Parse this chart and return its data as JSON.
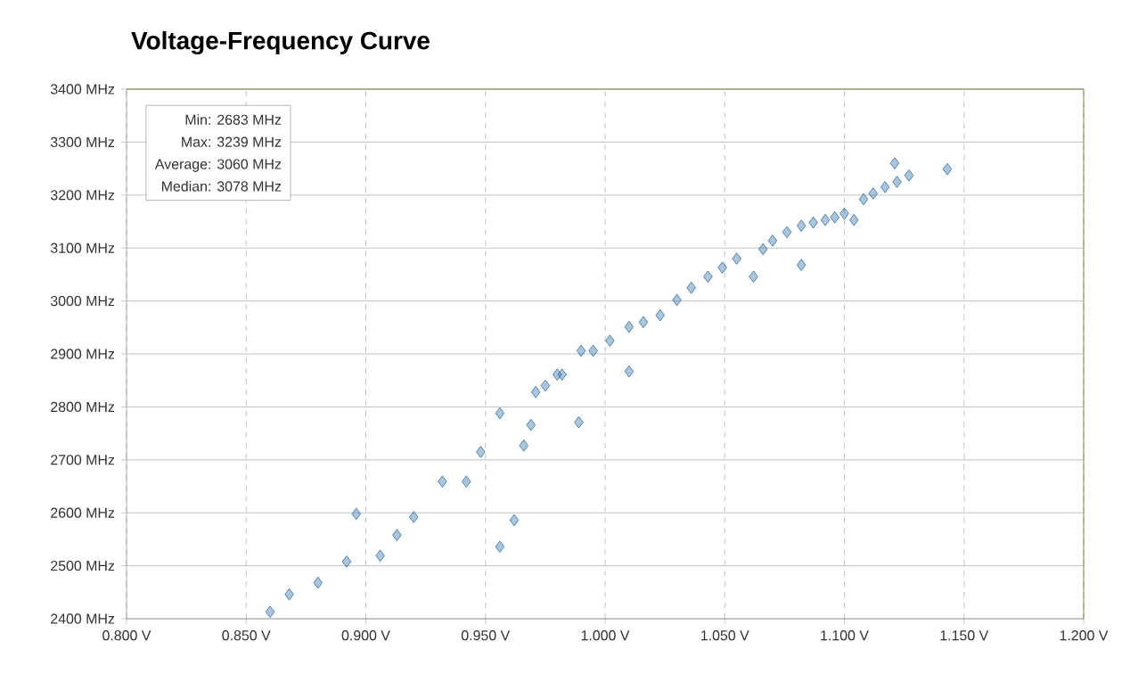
{
  "chart_data": {
    "type": "scatter",
    "title": "Voltage-Frequency Curve",
    "annotations": [
      "Min: 2683 MHz",
      "Max: 3239 MHz",
      "Average:  3060 MHz",
      "Median: 3078 MHz"
    ],
    "x": [
      0.86,
      0.868,
      0.88,
      0.892,
      0.896,
      0.906,
      0.913,
      0.92,
      0.932,
      0.942,
      0.948,
      0.956,
      0.962,
      0.956,
      0.966,
      0.969,
      0.971,
      0.975,
      0.98,
      0.982,
      0.989,
      0.99,
      0.995,
      1.002,
      1.01,
      1.01,
      1.016,
      1.023,
      1.03,
      1.036,
      1.043,
      1.049,
      1.055,
      1.062,
      1.066,
      1.07,
      1.076,
      1.082,
      1.082,
      1.087,
      1.092,
      1.096,
      1.1,
      1.104,
      1.108,
      1.112,
      1.117,
      1.121,
      1.122,
      1.127,
      1.143
    ],
    "values": [
      2413,
      2446,
      2468,
      2508,
      2598,
      2519,
      2558,
      2592,
      2659,
      2659,
      2715,
      2536,
      2586,
      2788,
      2727,
      2766,
      2828,
      2840,
      2861,
      2861,
      2771,
      2906,
      2906,
      2925,
      2951,
      2867,
      2960,
      2973,
      3002,
      3025,
      3046,
      3063,
      3080,
      3046,
      3098,
      3114,
      3130,
      3142,
      3068,
      3148,
      3153,
      3158,
      3165,
      3153,
      3192,
      3203,
      3215,
      3260,
      3225,
      3237,
      3249
    ],
    "color": "#2e6da4",
    "marker": "diamond",
    "grid": true,
    "xlim": [
      0.8,
      1.2
    ],
    "xticks": [
      {
        "value": 0.8,
        "label": "0.800 V"
      },
      {
        "value": 0.85,
        "label": "0.850 V"
      },
      {
        "value": 0.9,
        "label": "0.900 V"
      },
      {
        "value": 0.95,
        "label": "0.950 V"
      },
      {
        "value": 1.0,
        "label": "1.000 V"
      },
      {
        "value": 1.05,
        "label": "1.050 V"
      },
      {
        "value": 1.1,
        "label": "1.100 V"
      },
      {
        "value": 1.15,
        "label": "1.150 V"
      },
      {
        "value": 1.2,
        "label": "1.200 V"
      }
    ],
    "ylim": [
      2400,
      3400
    ],
    "yticks": [
      {
        "value": 2400,
        "label": "2400 MHz"
      },
      {
        "value": 2500,
        "label": "2500 MHz"
      },
      {
        "value": 2600,
        "label": "2600 MHz"
      },
      {
        "value": 2700,
        "label": "2700 MHz"
      },
      {
        "value": 2800,
        "label": "2800 MHz"
      },
      {
        "value": 2900,
        "label": "2900 MHz"
      },
      {
        "value": 3000,
        "label": "3000 MHz"
      },
      {
        "value": 3100,
        "label": "3100 MHz"
      },
      {
        "value": 3200,
        "label": "3200 MHz"
      },
      {
        "value": 3300,
        "label": "3300 MHz"
      },
      {
        "value": 3400,
        "label": "3400 MHz"
      }
    ]
  }
}
